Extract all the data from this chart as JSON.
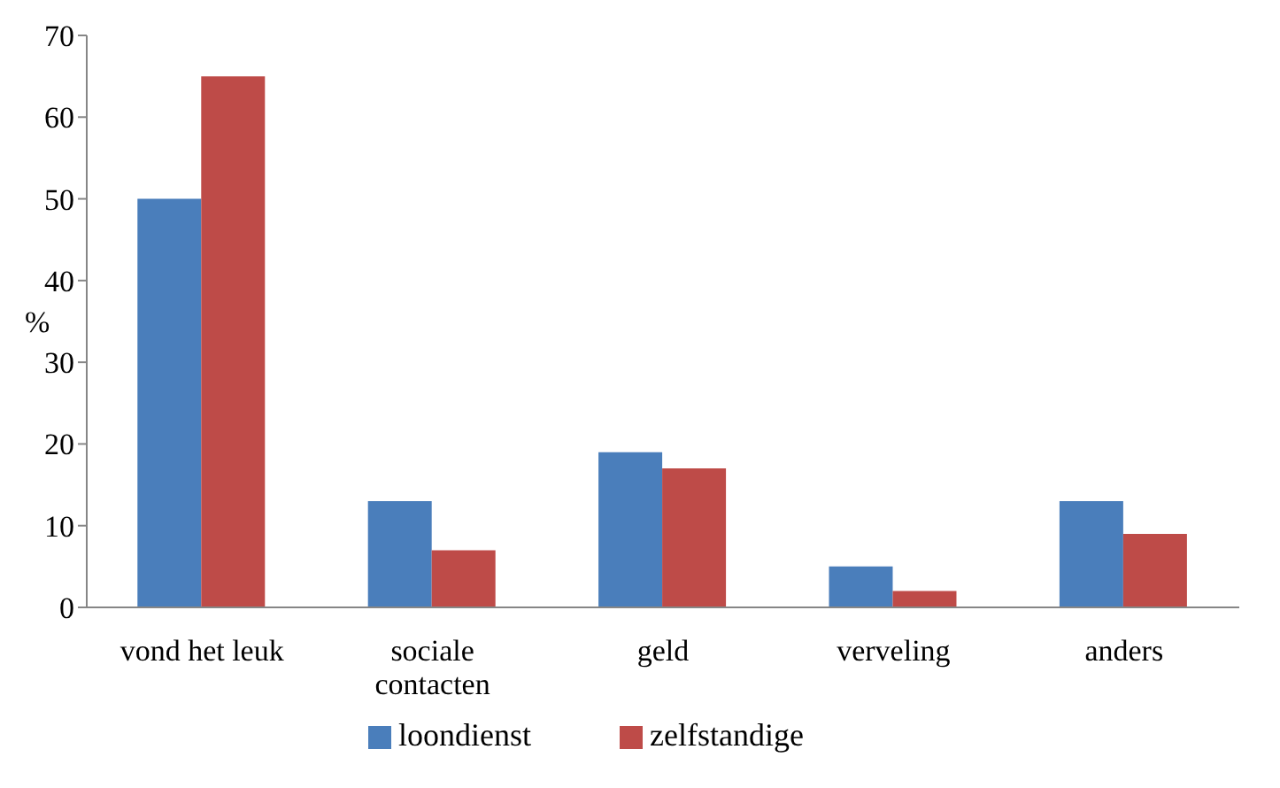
{
  "chart_data": {
    "type": "bar",
    "ylabel": "%",
    "categories": [
      "vond het leuk",
      "sociale contacten",
      "geld",
      "verveling",
      "anders"
    ],
    "series": [
      {
        "name": "loondienst",
        "color": "#4a7ebb",
        "values": [
          50,
          13,
          19,
          5,
          13
        ]
      },
      {
        "name": "zelfstandige",
        "color": "#be4b48",
        "values": [
          65,
          7,
          17,
          2,
          9
        ]
      }
    ],
    "ylim": [
      0,
      70
    ],
    "yticks": [
      0,
      10,
      20,
      30,
      40,
      50,
      60,
      70
    ],
    "grid": false,
    "legend": "bottom"
  }
}
